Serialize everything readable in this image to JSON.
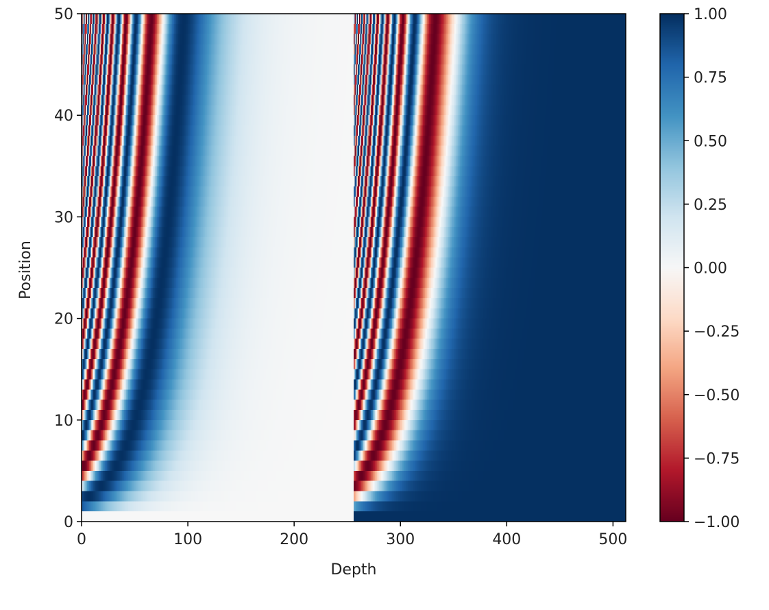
{
  "chart_data": {
    "type": "heatmap",
    "title": "",
    "xlabel": "Depth",
    "ylabel": "Position",
    "xlim": [
      0,
      512
    ],
    "ylim": [
      0,
      50
    ],
    "x_ticks": [
      "0",
      "100",
      "200",
      "300",
      "400",
      "500"
    ],
    "y_ticks": [
      "0",
      "10",
      "20",
      "30",
      "40",
      "50"
    ],
    "n_positions": 50,
    "depth": 512,
    "encoding": "positional encoding: sin(pos / 10000^(2i/256)) for depth 0-255, cos(pos / 10000^(2i/256)) for depth 256-511",
    "colormap": "RdBu",
    "colormap_stops": [
      "#67001f",
      "#b2182b",
      "#d6604d",
      "#f4a582",
      "#fddbc7",
      "#f7f7f7",
      "#d1e5f0",
      "#92c5de",
      "#4393c3",
      "#2166ac",
      "#053061"
    ],
    "value_range": [
      -1.0,
      1.0
    ],
    "colorbar": {
      "ticks": [
        "1.00",
        "0.75",
        "0.50",
        "0.25",
        "0.00",
        "−0.25",
        "−0.50",
        "−0.75",
        "−1.00"
      ]
    },
    "grid": false,
    "legend": "none"
  }
}
